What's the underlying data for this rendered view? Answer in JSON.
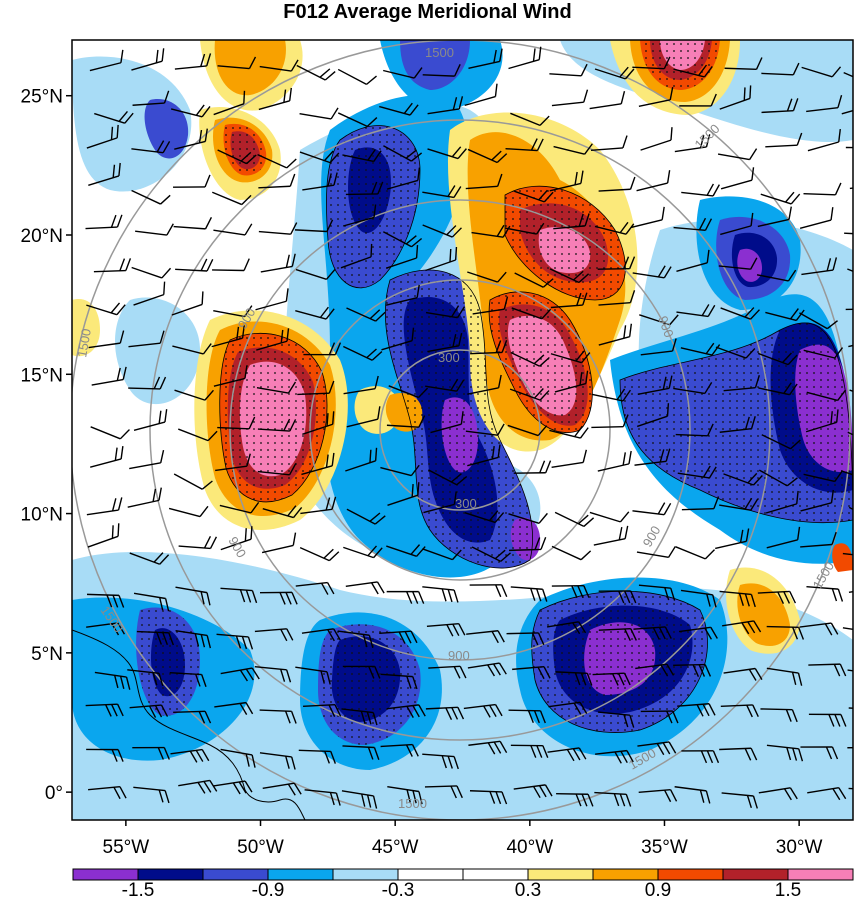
{
  "title": "F012 Average Meridional Wind",
  "axes": {
    "lat_labels": [
      "25°N",
      "20°N",
      "15°N",
      "10°N",
      "5°N",
      "0°"
    ],
    "lon_labels": [
      "55°W",
      "50°W",
      "45°W",
      "40°W",
      "35°W",
      "30°W"
    ],
    "lat_values": [
      25,
      20,
      15,
      10,
      5,
      0
    ],
    "lon_values": [
      -55,
      -50,
      -45,
      -40,
      -35,
      -30
    ],
    "lat_range": [
      -1,
      27
    ],
    "lon_range": [
      -57,
      -28
    ]
  },
  "contour_labels": [
    "1500",
    "1500",
    "1500",
    "1500",
    "1500",
    "1500",
    "1500",
    "900",
    "900",
    "900",
    "900",
    "900",
    "300",
    "300"
  ],
  "colorbar": {
    "labels": [
      "-1.5",
      "-0.9",
      "-0.3",
      "0.3",
      "0.9",
      "1.5"
    ],
    "colors": [
      "#8b2fd0",
      "#000c8a",
      "#3a4bd0",
      "#0aa6ee",
      "#a8dcf6",
      "#ffffff",
      "#ffffff",
      "#fbe97a",
      "#f8a100",
      "#f24a00",
      "#b2212a",
      "#f77fb7"
    ]
  },
  "colors": {
    "frame": "#000000",
    "contour_line": "#999999",
    "barb": "#000000"
  }
}
